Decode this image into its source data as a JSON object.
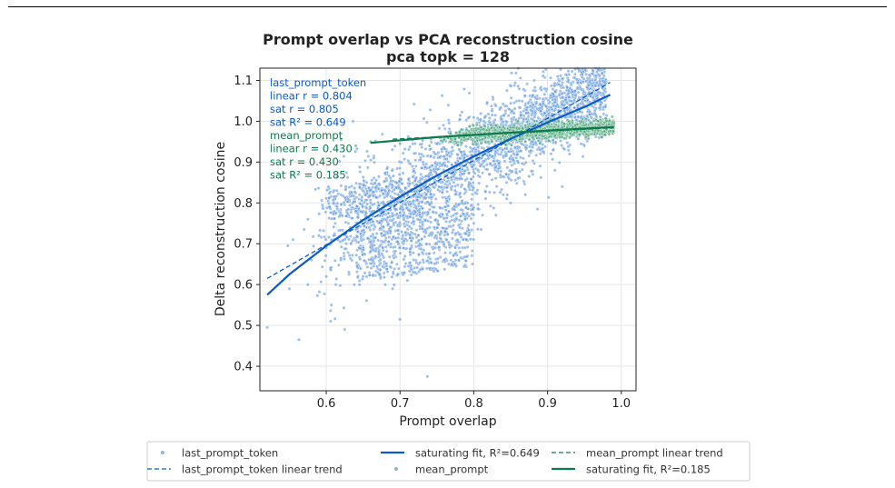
{
  "colors": {
    "last_prompt_token": "#0a5bc4",
    "mean_prompt": "#0d7a4e",
    "last_points": "#5b95d8",
    "mean_points": "#48a57a",
    "grid": "#e6e6e6",
    "text": "#222222"
  },
  "chart_data": {
    "type": "scatter",
    "title": "Prompt overlap vs PCA reconstruction cosine",
    "subtitle": "pca topk = 128",
    "xlabel": "Prompt overlap",
    "ylabel": "Delta reconstruction cosine",
    "xlim": [
      0.51,
      1.02
    ],
    "ylim": [
      0.34,
      1.13
    ],
    "xticks": [
      0.6,
      0.7,
      0.8,
      0.9,
      1.0
    ],
    "xtick_labels": [
      "0.6",
      "0.7",
      "0.8",
      "0.9",
      "1.0"
    ],
    "yticks": [
      0.4,
      0.5,
      0.6,
      0.7,
      0.8,
      0.9,
      1.0,
      1.1
    ],
    "ytick_labels": [
      "0.4",
      "0.5",
      "0.6",
      "0.7",
      "0.8",
      "0.9",
      "1.0",
      "1.1"
    ],
    "grid": true,
    "legend_position": "bottom-center",
    "series": [
      {
        "name": "last_prompt_token",
        "kind": "scatter",
        "color": "#5b95d8",
        "stats": [
          "last_prompt_token",
          "linear r = 0.804",
          "sat r = 0.805",
          "sat R² = 0.649"
        ],
        "points": [
          [
            0.52,
            0.495
          ],
          [
            0.563,
            0.465
          ],
          [
            0.606,
            0.51
          ],
          [
            0.606,
            0.536
          ],
          [
            0.607,
            0.55
          ],
          [
            0.625,
            0.49
          ],
          [
            0.624,
            0.543
          ],
          [
            0.613,
            0.6
          ],
          [
            0.588,
            0.573
          ],
          [
            0.575,
            0.6
          ],
          [
            0.55,
            0.59
          ],
          [
            0.548,
            0.695
          ],
          [
            0.57,
            0.735
          ],
          [
            0.575,
            0.76
          ],
          [
            0.6,
            0.62
          ],
          [
            0.645,
            0.6
          ],
          [
            0.638,
            0.6
          ],
          [
            0.68,
            0.6
          ],
          [
            0.7,
            0.515
          ],
          [
            0.737,
            0.375
          ],
          [
            0.65,
            0.62
          ],
          [
            0.555,
            0.71
          ],
          [
            0.58,
            0.66
          ],
          [
            0.59,
            0.72
          ],
          [
            0.62,
            0.665
          ],
          [
            0.6,
            0.69
          ],
          [
            0.92,
            0.84
          ],
          [
            0.88,
            0.87
          ],
          [
            0.86,
            0.86
          ],
          [
            0.85,
            0.8
          ],
          [
            0.83,
            0.77
          ],
          [
            0.84,
            0.82
          ],
          [
            0.8,
            0.75
          ],
          [
            0.775,
            0.69
          ],
          [
            0.76,
            0.66
          ],
          [
            0.72,
            0.63
          ],
          [
            0.74,
            0.64
          ],
          [
            0.69,
            0.59
          ],
          [
            0.71,
            0.61
          ],
          [
            0.67,
            0.63
          ],
          [
            0.79,
            0.71
          ],
          [
            0.81,
            0.735
          ],
          [
            0.87,
            0.82
          ],
          [
            0.89,
            0.89
          ],
          [
            0.91,
            0.88
          ],
          [
            0.93,
            0.92
          ],
          [
            0.95,
            0.94
          ],
          [
            0.97,
            0.96
          ],
          [
            0.64,
            0.78
          ],
          [
            0.63,
            0.75
          ],
          [
            0.61,
            0.72
          ],
          [
            0.66,
            0.8
          ],
          [
            0.62,
            0.82
          ],
          [
            0.65,
            0.83
          ]
        ]
      },
      {
        "name": "last_prompt_token linear trend",
        "kind": "line",
        "dash": true,
        "color": "#0a5bc4",
        "x": [
          0.52,
          0.985
        ],
        "y": [
          0.615,
          1.095
        ]
      },
      {
        "name": "saturating fit, R²=0.649",
        "kind": "line",
        "color": "#0a5bc4",
        "x": [
          0.52,
          0.55,
          0.6,
          0.65,
          0.7,
          0.75,
          0.8,
          0.85,
          0.9,
          0.95,
          0.985
        ],
        "y": [
          0.575,
          0.625,
          0.695,
          0.758,
          0.815,
          0.867,
          0.914,
          0.957,
          0.997,
          1.035,
          1.065
        ]
      },
      {
        "name": "mean_prompt",
        "kind": "scatter",
        "color": "#48a57a",
        "stats": [
          "mean_prompt",
          "linear r = 0.430",
          "sat r = 0.430",
          "sat R² = 0.185"
        ],
        "points": [
          [
            0.74,
            0.94
          ],
          [
            0.76,
            0.955
          ],
          [
            0.78,
            0.96
          ],
          [
            0.79,
            0.97
          ],
          [
            0.8,
            0.965
          ],
          [
            0.81,
            0.985
          ],
          [
            0.82,
            0.95
          ],
          [
            0.83,
            0.99
          ],
          [
            0.84,
            0.975
          ],
          [
            0.85,
            0.965
          ],
          [
            0.86,
            1.0
          ],
          [
            0.87,
            0.99
          ],
          [
            0.88,
            0.96
          ],
          [
            0.89,
            0.985
          ],
          [
            0.9,
            0.975
          ],
          [
            0.91,
            1.0
          ],
          [
            0.92,
            0.985
          ],
          [
            0.93,
            0.995
          ],
          [
            0.94,
            0.975
          ],
          [
            0.95,
            0.99
          ],
          [
            0.96,
            0.985
          ],
          [
            0.97,
            0.99
          ],
          [
            0.98,
            0.98
          ],
          [
            0.99,
            0.995
          ],
          [
            0.87,
            0.95
          ],
          [
            0.93,
            0.96
          ],
          [
            0.64,
            0.94
          ],
          [
            0.62,
            0.955
          ],
          [
            0.66,
            0.95
          ],
          [
            0.7,
            0.945
          ]
        ]
      },
      {
        "name": "mean_prompt linear trend",
        "kind": "line",
        "dash": true,
        "color": "#0d7a4e",
        "x": [
          0.69,
          0.99
        ],
        "y": [
          0.956,
          0.984
        ]
      },
      {
        "name": "saturating fit, R²=0.185",
        "kind": "line",
        "color": "#0d7a4e",
        "x": [
          0.66,
          0.75,
          0.85,
          0.95,
          0.99
        ],
        "y": [
          0.947,
          0.961,
          0.972,
          0.982,
          0.986
        ]
      }
    ],
    "legend": [
      "last_prompt_token",
      "saturating fit, R²=0.649",
      "mean_prompt linear trend",
      "last_prompt_token linear trend",
      "mean_prompt",
      "saturating fit, R²=0.185"
    ]
  }
}
